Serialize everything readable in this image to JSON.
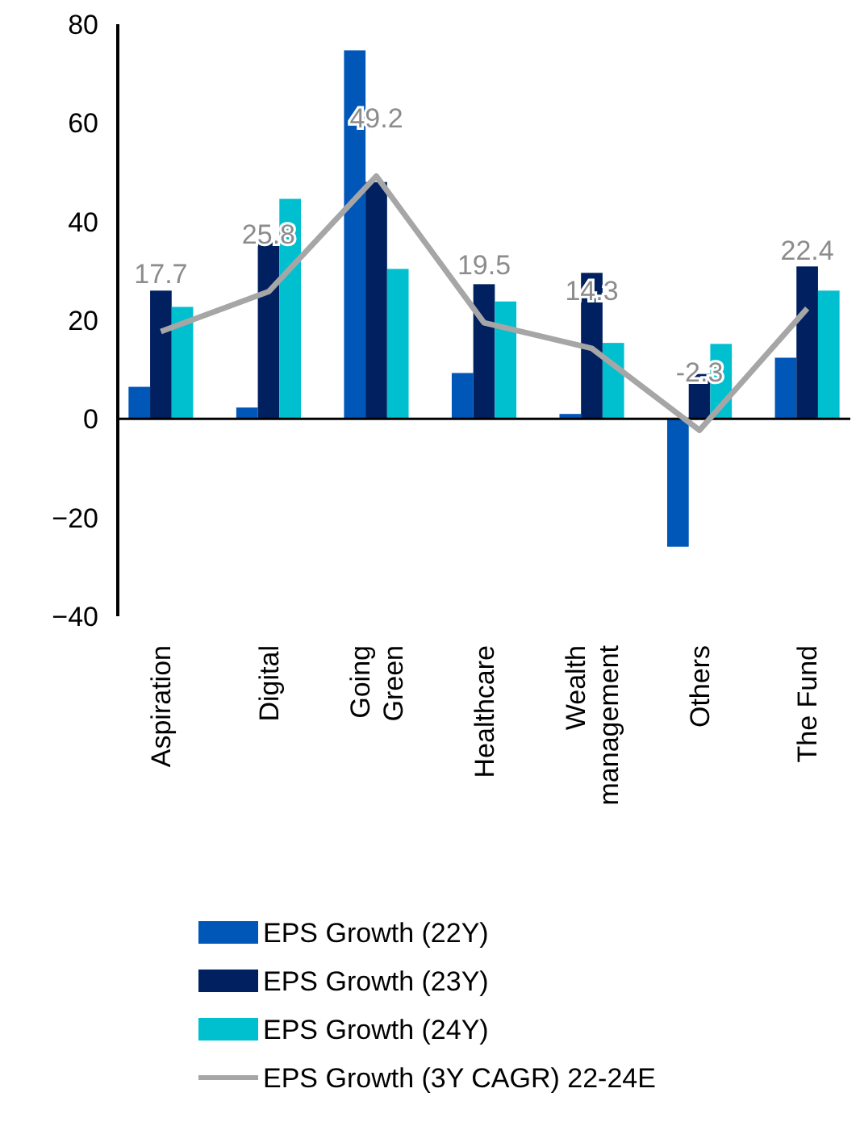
{
  "chart_data": {
    "type": "bar",
    "categories": [
      "Aspiration",
      "Digital",
      "Going Green",
      "Healthcare",
      "Wealth management",
      "Others",
      "The Fund"
    ],
    "series": [
      {
        "name": "EPS Growth (22Y)",
        "color": "#0057b8",
        "values": [
          6.5,
          2.3,
          74.7,
          9.3,
          1,
          -25.9,
          12.4
        ]
      },
      {
        "name": "EPS Growth (23Y)",
        "color": "#002060",
        "values": [
          26,
          36.2,
          48,
          27.3,
          29.6,
          9.1,
          30.9
        ]
      },
      {
        "name": "EPS Growth (24Y)",
        "color": "#00c0d0",
        "values": [
          22.7,
          44.6,
          30.4,
          23.8,
          15.4,
          15.2,
          26
        ]
      },
      {
        "name": "EPS Growth (3Y CAGR) 22-24E",
        "type": "line",
        "color": "#a6a6a6",
        "values": [
          17.7,
          25.8,
          49.2,
          19.5,
          14.3,
          -2.3,
          22.4
        ],
        "data_labels": true
      }
    ],
    "ylim": [
      -40,
      80
    ],
    "yticks": [
      -40,
      -20,
      0,
      20,
      40,
      60,
      80
    ],
    "legend": "bottom",
    "marker": "none"
  }
}
